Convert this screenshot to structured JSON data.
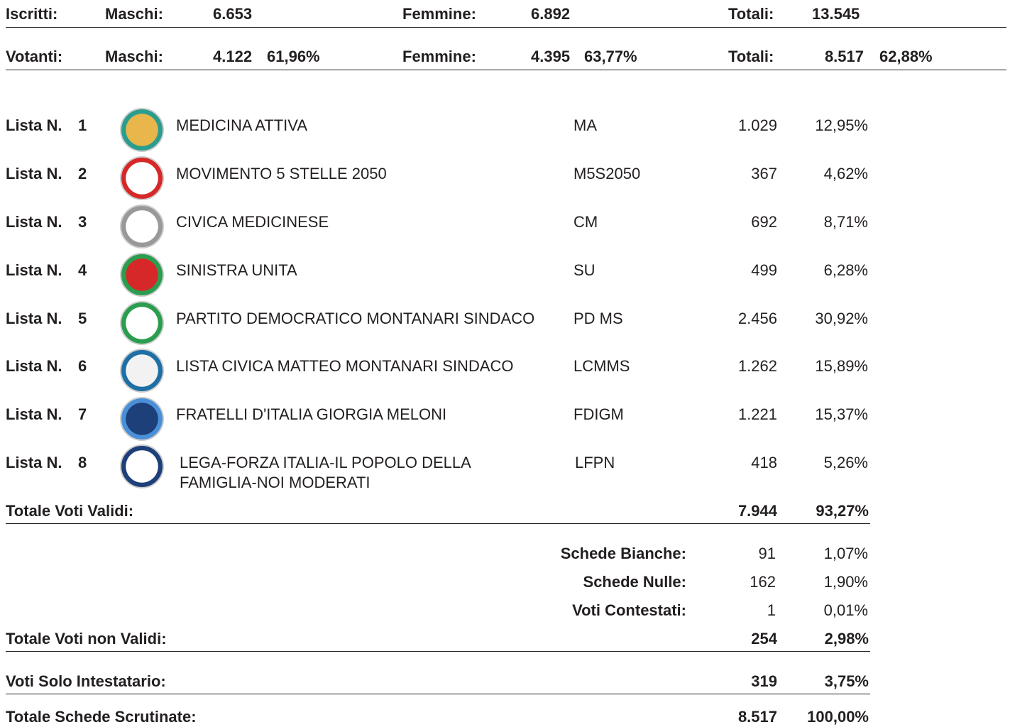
{
  "header": {
    "iscritti": {
      "label": "Iscritti:",
      "maschi_label": "Maschi:",
      "maschi": "6.653",
      "femmine_label": "Femmine:",
      "femmine": "6.892",
      "totali_label": "Totali:",
      "totali": "13.545"
    },
    "votanti": {
      "label": "Votanti:",
      "maschi_label": "Maschi:",
      "maschi": "4.122",
      "maschi_pct": "61,96%",
      "femmine_label": "Femmine:",
      "femmine": "4.395",
      "femmine_pct": "63,77%",
      "totali_label": "Totali:",
      "totali": "8.517",
      "totali_pct": "62,88%"
    }
  },
  "lists": [
    {
      "label": "Lista N.",
      "number": "1",
      "name": "MEDICINA ATTIVA",
      "abbr": "MA",
      "votes": "1.029",
      "pct": "12,95%"
    },
    {
      "label": "Lista N.",
      "number": "2",
      "name": "MOVIMENTO 5 STELLE 2050",
      "abbr": "M5S2050",
      "votes": "367",
      "pct": "4,62%"
    },
    {
      "label": "Lista N.",
      "number": "3",
      "name": "CIVICA MEDICINESE",
      "abbr": "CM",
      "votes": "692",
      "pct": "8,71%"
    },
    {
      "label": "Lista N.",
      "number": "4",
      "name": "SINISTRA UNITA",
      "abbr": "SU",
      "votes": "499",
      "pct": "6,28%"
    },
    {
      "label": "Lista N.",
      "number": "5",
      "name": "PARTITO DEMOCRATICO MONTANARI SINDACO",
      "abbr": "PD MS",
      "votes": "2.456",
      "pct": "30,92%"
    },
    {
      "label": "Lista N.",
      "number": "6",
      "name": "LISTA CIVICA MATTEO MONTANARI SINDACO",
      "abbr": "LCMMS",
      "votes": "1.262",
      "pct": "15,89%"
    },
    {
      "label": "Lista N.",
      "number": "7",
      "name": "FRATELLI D'ITALIA GIORGIA MELONI",
      "abbr": "FDIGM",
      "votes": "1.221",
      "pct": "15,37%"
    },
    {
      "label": "Lista N.",
      "number": "8",
      "name": "LEGA-FORZA ITALIA-IL POPOLO DELLA FAMIGLIA-NOI MODERATI",
      "abbr": "LFPN",
      "votes": "418",
      "pct": "5,26%"
    }
  ],
  "valid_total": {
    "label": "Totale Voti Validi:",
    "votes": "7.944",
    "pct": "93,27%"
  },
  "invalid": [
    {
      "label": "Schede Bianche:",
      "votes": "91",
      "pct": "1,07%"
    },
    {
      "label": "Schede Nulle:",
      "votes": "162",
      "pct": "1,90%"
    },
    {
      "label": "Voti Contestati:",
      "votes": "1",
      "pct": "0,01%"
    }
  ],
  "invalid_total": {
    "label": "Totale Voti non Validi:",
    "votes": "254",
    "pct": "2,98%"
  },
  "solo_intestatario": {
    "label": "Voti Solo Intestatario:",
    "votes": "319",
    "pct": "3,75%"
  },
  "scrutinate": {
    "label": "Totale Schede Scrutinate:",
    "votes": "8.517",
    "pct": "100,00%"
  }
}
